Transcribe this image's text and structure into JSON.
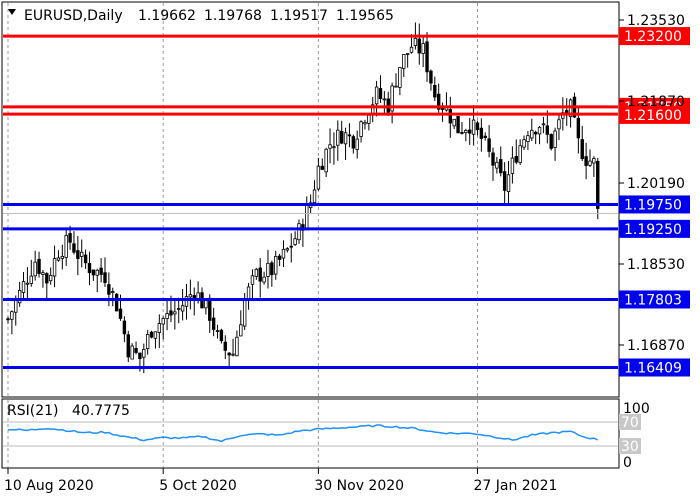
{
  "header": {
    "symbol_label": "EURUSD,Daily",
    "open": "1.19662",
    "high": "1.19768",
    "low": "1.19517",
    "close": "1.19565"
  },
  "indicator": {
    "label": "RSI(21)",
    "value": "40.7775",
    "scale_labels": [
      "100",
      "70",
      "30",
      "0"
    ]
  },
  "colors": {
    "support": "#0000ee",
    "resistance": "#ff0000",
    "rsi_line": "#1e90ff",
    "candle": "#000000"
  },
  "chart_data": {
    "type": "candlestick",
    "symbol": "EURUSD",
    "timeframe": "Daily",
    "y_ticks": [
      "1.23530",
      "1.21870",
      "1.20190",
      "1.18530",
      "1.16870"
    ],
    "ylim": [
      1.1615,
      1.2385
    ],
    "x_ticks": [
      {
        "label": "10 Aug 2020",
        "index": 0
      },
      {
        "label": "5 Oct 2020",
        "index": 40
      },
      {
        "label": "30 Nov 2020",
        "index": 80
      },
      {
        "label": "27 Jan 2021",
        "index": 121
      }
    ],
    "levels": [
      {
        "value": "1.23200",
        "kind": "resistance"
      },
      {
        "value": "1.21750",
        "kind": "resistance"
      },
      {
        "value": "1.21600",
        "kind": "resistance"
      },
      {
        "value": "1.19750",
        "kind": "support"
      },
      {
        "value": "1.19250",
        "kind": "support"
      },
      {
        "value": "1.17803",
        "kind": "support"
      },
      {
        "value": "1.16409",
        "kind": "support"
      }
    ],
    "current_price": "1.19565",
    "close_path": [
      [
        0,
        1.174
      ],
      [
        4,
        1.181
      ],
      [
        7,
        1.186
      ],
      [
        10,
        1.182
      ],
      [
        13,
        1.188
      ],
      [
        16,
        1.19
      ],
      [
        19,
        1.186
      ],
      [
        22,
        1.184
      ],
      [
        25,
        1.183
      ],
      [
        28,
        1.177
      ],
      [
        31,
        1.168
      ],
      [
        34,
        1.166
      ],
      [
        37,
        1.172
      ],
      [
        40,
        1.174
      ],
      [
        44,
        1.176
      ],
      [
        48,
        1.18
      ],
      [
        52,
        1.175
      ],
      [
        55,
        1.168
      ],
      [
        58,
        1.167
      ],
      [
        61,
        1.178
      ],
      [
        64,
        1.183
      ],
      [
        68,
        1.184
      ],
      [
        72,
        1.188
      ],
      [
        75,
        1.192
      ],
      [
        78,
        1.198
      ],
      [
        80,
        1.205
      ],
      [
        83,
        1.21
      ],
      [
        86,
        1.212
      ],
      [
        89,
        1.211
      ],
      [
        92,
        1.216
      ],
      [
        95,
        1.22
      ],
      [
        98,
        1.218
      ],
      [
        101,
        1.226
      ],
      [
        104,
        1.23
      ],
      [
        107,
        1.229
      ],
      [
        110,
        1.22
      ],
      [
        113,
        1.217
      ],
      [
        116,
        1.213
      ],
      [
        119,
        1.214
      ],
      [
        122,
        1.211
      ],
      [
        125,
        1.206
      ],
      [
        128,
        1.201
      ],
      [
        131,
        1.208
      ],
      [
        134,
        1.213
      ],
      [
        137,
        1.214
      ],
      [
        140,
        1.21
      ],
      [
        143,
        1.216
      ],
      [
        145,
        1.217
      ],
      [
        147,
        1.21
      ],
      [
        149,
        1.207
      ],
      [
        151,
        1.206
      ],
      [
        152,
        1.196
      ]
    ],
    "rsi_path": [
      [
        0,
        58
      ],
      [
        5,
        56
      ],
      [
        10,
        60
      ],
      [
        15,
        56
      ],
      [
        20,
        52
      ],
      [
        25,
        53
      ],
      [
        30,
        46
      ],
      [
        35,
        40
      ],
      [
        40,
        44
      ],
      [
        45,
        43
      ],
      [
        50,
        46
      ],
      [
        55,
        38
      ],
      [
        60,
        48
      ],
      [
        65,
        50
      ],
      [
        70,
        48
      ],
      [
        75,
        55
      ],
      [
        80,
        58
      ],
      [
        85,
        60
      ],
      [
        90,
        62
      ],
      [
        95,
        64
      ],
      [
        100,
        62
      ],
      [
        105,
        59
      ],
      [
        110,
        53
      ],
      [
        115,
        51
      ],
      [
        120,
        51
      ],
      [
        125,
        46
      ],
      [
        130,
        40
      ],
      [
        135,
        48
      ],
      [
        140,
        52
      ],
      [
        145,
        54
      ],
      [
        148,
        46
      ],
      [
        152,
        40.8
      ]
    ]
  }
}
